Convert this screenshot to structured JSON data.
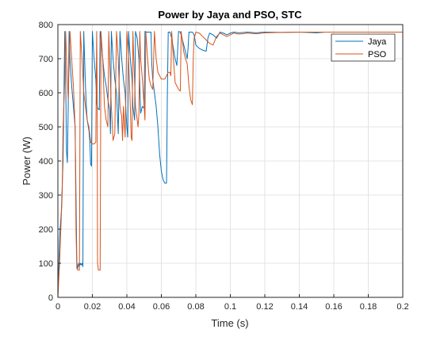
{
  "chart_data": {
    "type": "line",
    "title": "Power by Jaya and PSO, STC",
    "xlabel": "Time (s)",
    "ylabel": "Power (W)",
    "xlim": [
      0,
      0.2
    ],
    "ylim": [
      0,
      800
    ],
    "xticks": [
      0,
      0.02,
      0.04,
      0.06,
      0.08,
      0.1,
      0.12,
      0.14,
      0.16,
      0.18,
      0.2
    ],
    "xtick_labels": [
      "0",
      "0.02",
      "0.04",
      "0.06",
      "0.08",
      "0.1",
      "0.12",
      "0.14",
      "0.16",
      "0.18",
      "0.2"
    ],
    "yticks": [
      0,
      100,
      200,
      300,
      400,
      500,
      600,
      700,
      800
    ],
    "ytick_labels": [
      "0",
      "100",
      "200",
      "300",
      "400",
      "500",
      "600",
      "700",
      "800"
    ],
    "grid": true,
    "legend_position": "top-right",
    "series": [
      {
        "name": "Jaya",
        "color": "#0072BD",
        "points": [
          [
            0,
            0
          ],
          [
            0.001,
            180
          ],
          [
            0.002,
            250
          ],
          [
            0.003,
            400
          ],
          [
            0.004,
            780
          ],
          [
            0.0045,
            650
          ],
          [
            0.005,
            430
          ],
          [
            0.0055,
            395
          ],
          [
            0.006,
            560
          ],
          [
            0.0065,
            780
          ],
          [
            0.007,
            700
          ],
          [
            0.008,
            620
          ],
          [
            0.009,
            560
          ],
          [
            0.01,
            500
          ],
          [
            0.0105,
            300
          ],
          [
            0.011,
            100
          ],
          [
            0.0115,
            85
          ],
          [
            0.012,
            100
          ],
          [
            0.0125,
            90
          ],
          [
            0.013,
            100
          ],
          [
            0.0135,
            95
          ],
          [
            0.014,
            100
          ],
          [
            0.0145,
            90
          ],
          [
            0.015,
            780
          ],
          [
            0.0155,
            700
          ],
          [
            0.016,
            620
          ],
          [
            0.0165,
            560
          ],
          [
            0.017,
            520
          ],
          [
            0.018,
            490
          ],
          [
            0.0185,
            460
          ],
          [
            0.019,
            390
          ],
          [
            0.0195,
            385
          ],
          [
            0.02,
            780
          ],
          [
            0.021,
            700
          ],
          [
            0.022,
            640
          ],
          [
            0.0225,
            570
          ],
          [
            0.023,
            555
          ],
          [
            0.024,
            550
          ],
          [
            0.0245,
            780
          ],
          [
            0.025,
            760
          ],
          [
            0.026,
            700
          ],
          [
            0.027,
            650
          ],
          [
            0.028,
            620
          ],
          [
            0.029,
            580
          ],
          [
            0.03,
            550
          ],
          [
            0.0305,
            480
          ],
          [
            0.031,
            780
          ],
          [
            0.032,
            700
          ],
          [
            0.033,
            640
          ],
          [
            0.034,
            600
          ],
          [
            0.035,
            480
          ],
          [
            0.036,
            780
          ],
          [
            0.037,
            700
          ],
          [
            0.038,
            640
          ],
          [
            0.039,
            600
          ],
          [
            0.0395,
            540
          ],
          [
            0.04,
            500
          ],
          [
            0.0405,
            470
          ],
          [
            0.041,
            780
          ],
          [
            0.042,
            700
          ],
          [
            0.043,
            640
          ],
          [
            0.0435,
            560
          ],
          [
            0.044,
            540
          ],
          [
            0.0445,
            520
          ],
          [
            0.045,
            780
          ],
          [
            0.046,
            760
          ],
          [
            0.047,
            700
          ],
          [
            0.048,
            540
          ],
          [
            0.049,
            560
          ],
          [
            0.05,
            555
          ],
          [
            0.0505,
            780
          ],
          [
            0.051,
            778
          ],
          [
            0.052,
            778
          ],
          [
            0.053,
            778
          ],
          [
            0.054,
            778
          ],
          [
            0.0545,
            680
          ],
          [
            0.055,
            640
          ],
          [
            0.056,
            600
          ],
          [
            0.057,
            560
          ],
          [
            0.058,
            500
          ],
          [
            0.059,
            420
          ],
          [
            0.06,
            370
          ],
          [
            0.061,
            345
          ],
          [
            0.062,
            335
          ],
          [
            0.063,
            335
          ],
          [
            0.0635,
            600
          ],
          [
            0.064,
            778
          ],
          [
            0.065,
            778
          ],
          [
            0.066,
            760
          ],
          [
            0.067,
            730
          ],
          [
            0.068,
            700
          ],
          [
            0.069,
            680
          ],
          [
            0.07,
            780
          ],
          [
            0.071,
            778
          ],
          [
            0.072,
            760
          ],
          [
            0.073,
            740
          ],
          [
            0.074,
            720
          ],
          [
            0.075,
            700
          ],
          [
            0.0755,
            730
          ],
          [
            0.076,
            778
          ],
          [
            0.078,
            778
          ],
          [
            0.079,
            770
          ],
          [
            0.08,
            740
          ],
          [
            0.082,
            730
          ],
          [
            0.084,
            725
          ],
          [
            0.086,
            722
          ],
          [
            0.087,
            760
          ],
          [
            0.088,
            775
          ],
          [
            0.09,
            770
          ],
          [
            0.092,
            760
          ],
          [
            0.094,
            778
          ],
          [
            0.096,
            775
          ],
          [
            0.098,
            770
          ],
          [
            0.1,
            775
          ],
          [
            0.102,
            778
          ],
          [
            0.105,
            776
          ],
          [
            0.11,
            778
          ],
          [
            0.115,
            776
          ],
          [
            0.12,
            778
          ],
          [
            0.13,
            777
          ],
          [
            0.14,
            778
          ],
          [
            0.15,
            776
          ],
          [
            0.155,
            778
          ],
          [
            0.16,
            778
          ],
          [
            0.17,
            778
          ],
          [
            0.18,
            778
          ],
          [
            0.19,
            778
          ],
          [
            0.2,
            778
          ]
        ]
      },
      {
        "name": "PSO",
        "color": "#D95319",
        "points": [
          [
            0,
            0
          ],
          [
            0.001,
            100
          ],
          [
            0.002,
            240
          ],
          [
            0.0025,
            300
          ],
          [
            0.003,
            500
          ],
          [
            0.004,
            640
          ],
          [
            0.0045,
            780
          ],
          [
            0.005,
            700
          ],
          [
            0.006,
            580
          ],
          [
            0.007,
            780
          ],
          [
            0.008,
            700
          ],
          [
            0.009,
            620
          ],
          [
            0.01,
            500
          ],
          [
            0.0105,
            200
          ],
          [
            0.011,
            85
          ],
          [
            0.0115,
            80
          ],
          [
            0.012,
            80
          ],
          [
            0.0125,
            80
          ],
          [
            0.013,
            780
          ],
          [
            0.014,
            700
          ],
          [
            0.015,
            600
          ],
          [
            0.016,
            560
          ],
          [
            0.017,
            520
          ],
          [
            0.018,
            500
          ],
          [
            0.019,
            455
          ],
          [
            0.02,
            450
          ],
          [
            0.021,
            450
          ],
          [
            0.022,
            455
          ],
          [
            0.0225,
            780
          ],
          [
            0.0228,
            600
          ],
          [
            0.023,
            100
          ],
          [
            0.0235,
            80
          ],
          [
            0.024,
            80
          ],
          [
            0.0245,
            80
          ],
          [
            0.025,
            780
          ],
          [
            0.026,
            700
          ],
          [
            0.027,
            560
          ],
          [
            0.028,
            520
          ],
          [
            0.029,
            500
          ],
          [
            0.0295,
            780
          ],
          [
            0.03,
            700
          ],
          [
            0.031,
            560
          ],
          [
            0.032,
            460
          ],
          [
            0.033,
            480
          ],
          [
            0.034,
            780
          ],
          [
            0.035,
            700
          ],
          [
            0.036,
            560
          ],
          [
            0.037,
            530
          ],
          [
            0.0375,
            460
          ],
          [
            0.038,
            560
          ],
          [
            0.039,
            470
          ],
          [
            0.04,
            780
          ],
          [
            0.041,
            700
          ],
          [
            0.042,
            560
          ],
          [
            0.0425,
            470
          ],
          [
            0.043,
            460
          ],
          [
            0.0435,
            780
          ],
          [
            0.044,
            700
          ],
          [
            0.045,
            560
          ],
          [
            0.046,
            520
          ],
          [
            0.0465,
            500
          ],
          [
            0.047,
            540
          ],
          [
            0.0475,
            780
          ],
          [
            0.048,
            700
          ],
          [
            0.049,
            640
          ],
          [
            0.05,
            560
          ],
          [
            0.0505,
            520
          ],
          [
            0.051,
            780
          ],
          [
            0.052,
            700
          ],
          [
            0.053,
            640
          ],
          [
            0.054,
            620
          ],
          [
            0.055,
            610
          ],
          [
            0.056,
            780
          ],
          [
            0.057,
            700
          ],
          [
            0.058,
            660
          ],
          [
            0.059,
            650
          ],
          [
            0.06,
            640
          ],
          [
            0.061,
            640
          ],
          [
            0.062,
            640
          ],
          [
            0.063,
            650
          ],
          [
            0.064,
            660
          ],
          [
            0.065,
            660
          ],
          [
            0.0655,
            650
          ],
          [
            0.066,
            780
          ],
          [
            0.067,
            700
          ],
          [
            0.068,
            630
          ],
          [
            0.069,
            620
          ],
          [
            0.07,
            610
          ],
          [
            0.071,
            605
          ],
          [
            0.0715,
            780
          ],
          [
            0.072,
            760
          ],
          [
            0.073,
            720
          ],
          [
            0.074,
            700
          ],
          [
            0.075,
            685
          ],
          [
            0.076,
            620
          ],
          [
            0.077,
            580
          ],
          [
            0.078,
            565
          ],
          [
            0.0785,
            700
          ],
          [
            0.079,
            760
          ],
          [
            0.08,
            778
          ],
          [
            0.082,
            775
          ],
          [
            0.084,
            765
          ],
          [
            0.086,
            755
          ],
          [
            0.088,
            745
          ],
          [
            0.09,
            740
          ],
          [
            0.092,
            765
          ],
          [
            0.094,
            775
          ],
          [
            0.096,
            770
          ],
          [
            0.098,
            765
          ],
          [
            0.1,
            770
          ],
          [
            0.102,
            775
          ],
          [
            0.105,
            772
          ],
          [
            0.11,
            775
          ],
          [
            0.115,
            773
          ],
          [
            0.12,
            776
          ],
          [
            0.13,
            777
          ],
          [
            0.14,
            778
          ],
          [
            0.15,
            778
          ],
          [
            0.16,
            778
          ],
          [
            0.17,
            778
          ],
          [
            0.18,
            778
          ],
          [
            0.19,
            778
          ],
          [
            0.2,
            778
          ]
        ]
      }
    ]
  }
}
